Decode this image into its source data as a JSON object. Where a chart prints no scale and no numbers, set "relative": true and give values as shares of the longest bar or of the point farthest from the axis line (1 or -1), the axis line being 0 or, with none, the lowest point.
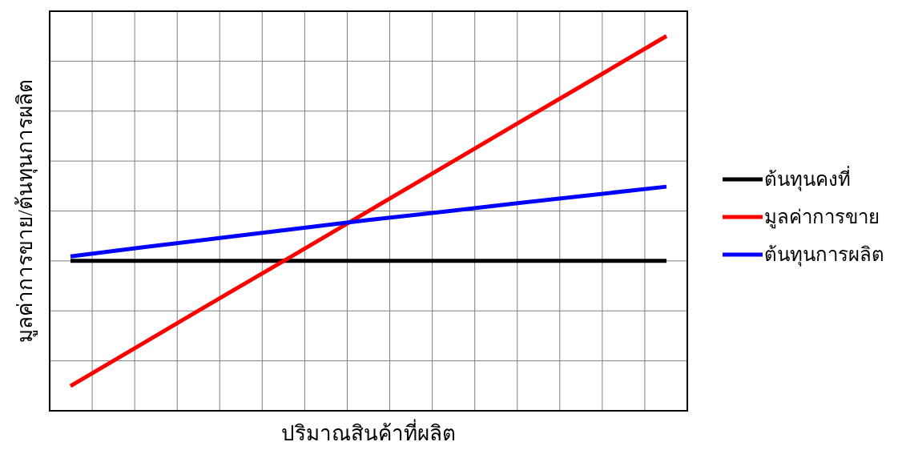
{
  "chart_data": {
    "type": "line",
    "relative": true,
    "xlabel": "ปริมาณสินค้าที่ผลิต",
    "ylabel": "มูลค่าการขาย/ต้นทุนการผลิต",
    "categories": [
      null,
      null,
      null,
      null,
      null,
      null,
      null,
      null,
      null
    ],
    "series": [
      {
        "name": "ต้นทุนคงที่",
        "color": "#000000",
        "values": [
          0.4,
          0.4,
          0.4,
          0.4,
          0.4,
          0.4,
          0.4,
          0.4,
          0.4
        ]
      },
      {
        "name": "มูลค่าการขาย",
        "color": "#ff0000",
        "values": [
          0.066,
          0.183,
          0.3,
          0.416,
          0.533,
          0.65,
          0.767,
          0.883,
          1.0
        ]
      },
      {
        "name": "ต้นทุนการผลิต",
        "color": "#0000ff",
        "values": [
          0.412,
          0.437,
          0.461,
          0.485,
          0.509,
          0.531,
          0.554,
          0.576,
          0.598
        ]
      }
    ],
    "grid": true,
    "legend": "right",
    "line_style": "solid",
    "marker": "none"
  }
}
